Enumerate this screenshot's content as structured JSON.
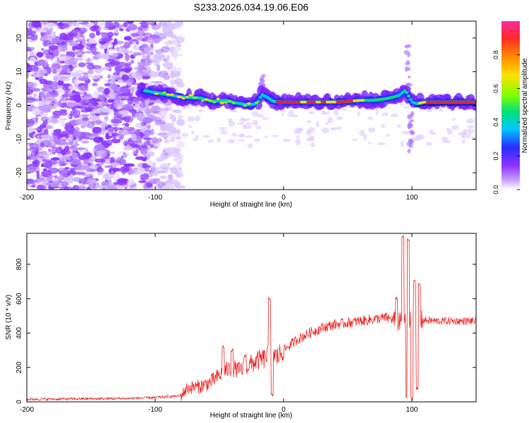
{
  "title": "S233.2026.034.19.06.E06",
  "colors": {
    "snr_line": "#ee2222",
    "ridge": "#ee2222",
    "frame": "#000000"
  },
  "chart_data": [
    {
      "type": "heatmap",
      "name": "spectrogram",
      "xlabel": "Height of straight line (km)",
      "ylabel": "Frequency (Hz)",
      "xlim": [
        -200,
        150
      ],
      "ylim": [
        -25,
        25
      ],
      "xticks": [
        -200,
        -100,
        0,
        100
      ],
      "xtick_labels": [
        "-200",
        "-100",
        "0",
        "100"
      ],
      "yticks": [
        -20,
        -10,
        0,
        10,
        20
      ],
      "ytick_labels": [
        "-20",
        "-10",
        "0",
        "10",
        "20"
      ],
      "ridge": {
        "x": [
          -110,
          -95,
          -80,
          -65,
          -55,
          -45,
          -38,
          -30,
          -25,
          -20,
          -17,
          -13,
          -8,
          0,
          10,
          20,
          30,
          40,
          50,
          60,
          70,
          80,
          86,
          90,
          95,
          100,
          104,
          110,
          130,
          150
        ],
        "freq": [
          4.5,
          3.5,
          2.5,
          2.2,
          1.2,
          1.5,
          0.8,
          0.3,
          0.2,
          0.8,
          3.2,
          2.5,
          1.2,
          1.0,
          1.0,
          1.0,
          1.0,
          1.0,
          1.2,
          1.5,
          1.5,
          2.0,
          2.5,
          3.0,
          4.5,
          1.0,
          0.5,
          1.0,
          1.0,
          1.0
        ]
      },
      "colorbar": {
        "label": "Normalized spectral amplitude",
        "range": [
          0.0,
          1.0
        ],
        "ticks": [
          0.0,
          0.2,
          0.4,
          0.6,
          0.8
        ],
        "tick_labels": [
          "0.0",
          "0.2",
          "0.4",
          "0.6",
          "0.8"
        ],
        "stops": [
          "#ffffff",
          "#8e33ff",
          "#2a2cff",
          "#00c8ff",
          "#00e07a",
          "#7fff00",
          "#ffe100",
          "#ff8800",
          "#ff2a2a",
          "#ff2a9c"
        ]
      }
    },
    {
      "type": "line",
      "name": "snr",
      "xlabel": "Height of straight line (km)",
      "ylabel": "SNR (10 * v/v)",
      "xlim": [
        -200,
        150
      ],
      "ylim": [
        0,
        980
      ],
      "xticks": [
        -200,
        -100,
        0,
        100
      ],
      "xtick_labels": [
        "-200",
        "-100",
        "0",
        "100"
      ],
      "yticks": [
        0,
        200,
        400,
        600,
        800
      ],
      "ytick_labels": [
        "0",
        "200",
        "400",
        "600",
        "800"
      ],
      "series": [
        {
          "name": "SNR",
          "envelope_x": [
            -200,
            -150,
            -120,
            -100,
            -90,
            -80,
            -75,
            -65,
            -58,
            -50,
            -45,
            -40,
            -35,
            -30,
            -25,
            -20,
            -15,
            -12,
            -10,
            -5,
            0,
            10,
            20,
            30,
            40,
            50,
            60,
            70,
            80,
            85,
            90,
            95,
            98,
            102,
            105,
            110,
            120,
            130,
            140,
            150
          ],
          "envelope_y": [
            15,
            18,
            20,
            25,
            30,
            35,
            80,
            90,
            110,
            150,
            180,
            200,
            180,
            200,
            220,
            240,
            250,
            280,
            300,
            260,
            300,
            360,
            400,
            430,
            450,
            460,
            470,
            480,
            490,
            480,
            460,
            460,
            470,
            480,
            470,
            475,
            470,
            470,
            470,
            470
          ],
          "spikes": [
            {
              "x": -47,
              "y": 320
            },
            {
              "x": -40,
              "y": 300
            },
            {
              "x": -30,
              "y": 270
            },
            {
              "x": -11,
              "y": 600
            },
            {
              "x": -9,
              "y": 40
            },
            {
              "x": 88,
              "y": 600
            },
            {
              "x": 93,
              "y": 960
            },
            {
              "x": 96,
              "y": 30
            },
            {
              "x": 97,
              "y": 940
            },
            {
              "x": 100,
              "y": 20
            },
            {
              "x": 102,
              "y": 700
            },
            {
              "x": 104,
              "y": 80
            },
            {
              "x": 106,
              "y": 680
            }
          ]
        }
      ]
    }
  ]
}
